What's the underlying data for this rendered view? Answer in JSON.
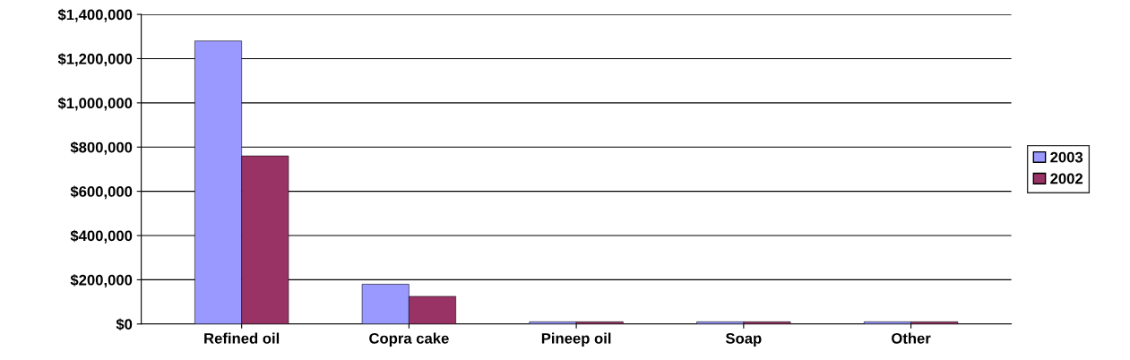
{
  "chart_data": {
    "type": "bar",
    "categories": [
      "Refined oil",
      "Copra cake",
      "Pineep oil",
      "Soap",
      "Other"
    ],
    "series": [
      {
        "name": "2003",
        "color": "#9999ff",
        "values": [
          1280000,
          180000,
          10000,
          10000,
          10000
        ]
      },
      {
        "name": "2002",
        "color": "#993366",
        "values": [
          760000,
          125000,
          10000,
          10000,
          10000
        ]
      }
    ],
    "ylim": [
      0,
      1400000
    ],
    "yticks": [
      {
        "value": 0,
        "label": "$0"
      },
      {
        "value": 200000,
        "label": "$200,000"
      },
      {
        "value": 400000,
        "label": "$400,000"
      },
      {
        "value": 600000,
        "label": "$600,000"
      },
      {
        "value": 800000,
        "label": "$800,000"
      },
      {
        "value": 1000000,
        "label": "$1,000,000"
      },
      {
        "value": 1200000,
        "label": "$1,200,000"
      },
      {
        "value": 1400000,
        "label": "$1,400,000"
      }
    ],
    "grid": "y",
    "legend": "right"
  }
}
